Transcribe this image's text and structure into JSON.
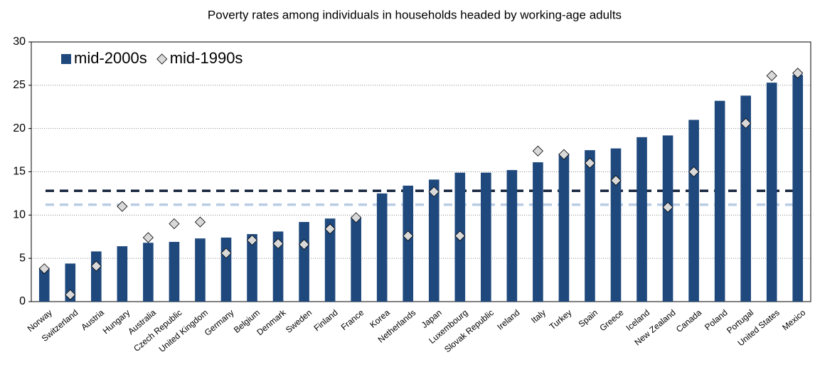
{
  "chart_data": {
    "type": "bar",
    "title": "Poverty rates among individuals in households headed by working-age adults",
    "categories": [
      "Norway",
      "Switzerland",
      "Austria",
      "Hungary",
      "Australia",
      "Czech Republic",
      "United Kingdom",
      "Germany",
      "Belgium",
      "Denmark",
      "Sweden",
      "Finland",
      "France",
      "Korea",
      "Netherlands",
      "Japan",
      "Luxembourg",
      "Slovak Republic",
      "Ireland",
      "Italy",
      "Turkey",
      "Spain",
      "Greece",
      "Iceland",
      "New Zealand",
      "Canada",
      "Poland",
      "Portugal",
      "United States",
      "Mexico"
    ],
    "series": [
      {
        "name": "mid-2000s",
        "type": "bar",
        "color": "#1f497d",
        "values": [
          3.9,
          4.4,
          5.8,
          6.4,
          6.8,
          6.9,
          7.3,
          7.4,
          7.8,
          8.1,
          9.2,
          9.6,
          9.8,
          12.5,
          13.4,
          14.1,
          14.9,
          14.9,
          15.2,
          16.1,
          17.1,
          17.5,
          17.7,
          19.0,
          19.2,
          21.0,
          23.2,
          23.8,
          25.3,
          26.2
        ]
      },
      {
        "name": "mid-1990s",
        "type": "scatter",
        "color": "#d9d9d9",
        "values": [
          3.8,
          0.8,
          4.1,
          11.0,
          7.4,
          9.0,
          9.2,
          5.6,
          7.1,
          6.7,
          6.6,
          8.4,
          9.7,
          null,
          7.6,
          12.7,
          7.6,
          null,
          null,
          17.4,
          17.0,
          16.0,
          14.0,
          null,
          10.9,
          15.0,
          null,
          20.6,
          26.1,
          26.4
        ]
      }
    ],
    "hlines": [
      {
        "value": 12.8,
        "color": "#1a2840"
      },
      {
        "value": 11.2,
        "color": "#b8cce4"
      }
    ],
    "ylim": [
      0,
      30
    ],
    "yticks": [
      0,
      5,
      10,
      15,
      20,
      25,
      30
    ],
    "grid": true,
    "legend": "top-left"
  }
}
